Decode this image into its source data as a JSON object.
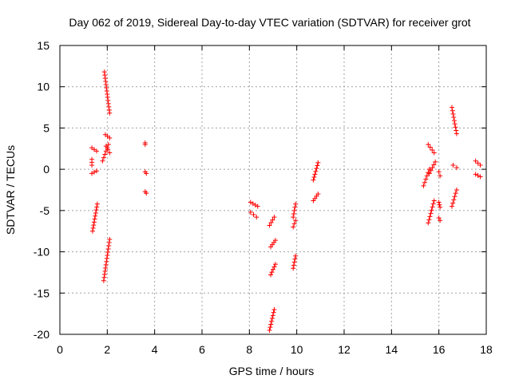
{
  "chart_data": {
    "type": "scatter",
    "title": "Day 062 of 2019, Sidereal Day-to-day VTEC variation (SDTVAR) for receiver grot",
    "xlabel": "GPS time / hours",
    "ylabel": "SDTVAR / TECUs",
    "xlim": [
      0,
      18
    ],
    "ylim": [
      -20,
      15
    ],
    "xticks": [
      0,
      2,
      4,
      6,
      8,
      10,
      12,
      14,
      16,
      18
    ],
    "yticks": [
      -20,
      -15,
      -10,
      -5,
      0,
      5,
      10,
      15
    ],
    "xtick_labels": [
      "0",
      "2",
      "4",
      "6",
      "8",
      "10",
      "12",
      "14",
      "16",
      "18"
    ],
    "ytick_labels": [
      "-20",
      "-15",
      "-10",
      "-5",
      "0",
      "5",
      "10",
      "15"
    ],
    "grid": true,
    "marker": "+",
    "color": "#ff0000",
    "segments": [
      {
        "x": [
          1.35,
          1.55
        ],
        "y": [
          2.6,
          2.2
        ]
      },
      {
        "x": [
          1.35,
          1.55
        ],
        "y": [
          -0.5,
          -0.2
        ]
      },
      {
        "x": [
          1.35,
          1.35
        ],
        "y": [
          1.2,
          0.5
        ]
      },
      {
        "x": [
          1.38,
          1.58
        ],
        "y": [
          -7.5,
          -4.2
        ]
      },
      {
        "x": [
          1.8,
          2.05
        ],
        "y": [
          1.0,
          3.0
        ]
      },
      {
        "x": [
          1.85,
          2.1
        ],
        "y": [
          -13.5,
          -8.5
        ]
      },
      {
        "x": [
          1.88,
          2.1
        ],
        "y": [
          11.8,
          6.8
        ]
      },
      {
        "x": [
          1.92,
          2.1
        ],
        "y": [
          4.2,
          3.8
        ]
      },
      {
        "x": [
          1.95,
          2.1
        ],
        "y": [
          2.8,
          2.0
        ]
      },
      {
        "x": [
          3.6,
          3.6
        ],
        "y": [
          3.2,
          3.0
        ]
      },
      {
        "x": [
          3.6,
          3.65
        ],
        "y": [
          -0.3,
          -0.5
        ]
      },
      {
        "x": [
          3.6,
          3.65
        ],
        "y": [
          -2.7,
          -2.9
        ]
      },
      {
        "x": [
          8.05,
          8.35
        ],
        "y": [
          -4.0,
          -4.5
        ]
      },
      {
        "x": [
          8.05,
          8.3
        ],
        "y": [
          -5.2,
          -5.8
        ]
      },
      {
        "x": [
          8.85,
          9.05
        ],
        "y": [
          -19.5,
          -17.0
        ]
      },
      {
        "x": [
          8.9,
          9.1
        ],
        "y": [
          -12.8,
          -11.5
        ]
      },
      {
        "x": [
          8.9,
          9.1
        ],
        "y": [
          -9.4,
          -8.6
        ]
      },
      {
        "x": [
          8.85,
          9.05
        ],
        "y": [
          -6.8,
          -5.8
        ]
      },
      {
        "x": [
          9.85,
          9.95
        ],
        "y": [
          -12.0,
          -10.5
        ]
      },
      {
        "x": [
          9.85,
          9.95
        ],
        "y": [
          -7.0,
          -6.2
        ]
      },
      {
        "x": [
          9.85,
          9.95
        ],
        "y": [
          -5.8,
          -4.2
        ]
      },
      {
        "x": [
          10.7,
          10.9
        ],
        "y": [
          -3.8,
          -3.0
        ]
      },
      {
        "x": [
          10.7,
          10.9
        ],
        "y": [
          -1.3,
          0.8
        ]
      },
      {
        "x": [
          15.35,
          15.6
        ],
        "y": [
          -2.0,
          0.0
        ]
      },
      {
        "x": [
          15.55,
          15.8
        ],
        "y": [
          -6.5,
          -3.8
        ]
      },
      {
        "x": [
          15.55,
          15.8
        ],
        "y": [
          3.0,
          2.0
        ]
      },
      {
        "x": [
          15.6,
          15.85
        ],
        "y": [
          -0.5,
          0.9
        ]
      },
      {
        "x": [
          16.0,
          16.05
        ],
        "y": [
          -0.3,
          -0.8
        ]
      },
      {
        "x": [
          16.0,
          16.05
        ],
        "y": [
          -4.0,
          -4.6
        ]
      },
      {
        "x": [
          16.0,
          16.05
        ],
        "y": [
          -5.9,
          -6.2
        ]
      },
      {
        "x": [
          16.55,
          16.75
        ],
        "y": [
          -4.5,
          -2.5
        ]
      },
      {
        "x": [
          16.55,
          16.75
        ],
        "y": [
          7.5,
          4.3
        ]
      },
      {
        "x": [
          16.6,
          16.75
        ],
        "y": [
          0.5,
          0.2
        ]
      },
      {
        "x": [
          17.55,
          17.75
        ],
        "y": [
          1.0,
          0.5
        ]
      },
      {
        "x": [
          17.55,
          17.75
        ],
        "y": [
          -0.6,
          -0.9
        ]
      }
    ]
  }
}
